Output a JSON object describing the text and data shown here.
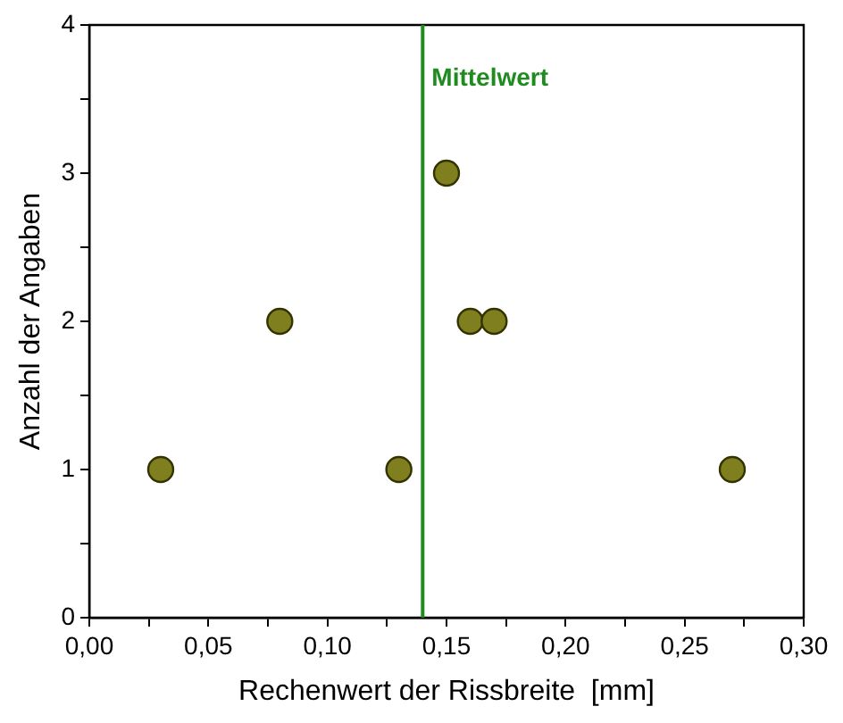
{
  "chart_data": {
    "type": "scatter",
    "xlabel": "Rechenwert der Rissbreite  [mm]",
    "ylabel": "Anzahl der Angaben",
    "series": [
      {
        "color": "#7f7f1f",
        "x": [
          0.03,
          0.08,
          0.13,
          0.15,
          0.16,
          0.17,
          0.27
        ],
        "values": [
          1,
          2,
          1,
          3,
          2,
          2,
          1
        ]
      }
    ],
    "xlim": [
      0,
      0.3
    ],
    "xticks": [
      {
        "value": 0,
        "label": "0,00"
      },
      {
        "value": 0.025,
        "label": null
      },
      {
        "value": 0.05,
        "label": "0,05"
      },
      {
        "value": 0.075,
        "label": null
      },
      {
        "value": 0.1,
        "label": "0,10"
      },
      {
        "value": 0.125,
        "label": null
      },
      {
        "value": 0.15,
        "label": "0,15"
      },
      {
        "value": 0.175,
        "label": null
      },
      {
        "value": 0.2,
        "label": "0,20"
      },
      {
        "value": 0.225,
        "label": null
      },
      {
        "value": 0.25,
        "label": "0,25"
      },
      {
        "value": 0.275,
        "label": null
      },
      {
        "value": 0.3,
        "label": "0,30"
      }
    ],
    "ylim": [
      0,
      4
    ],
    "yticks": [
      0,
      {
        "value": 0.5,
        "label": null
      },
      1,
      {
        "value": 1.5,
        "label": null
      },
      2,
      {
        "value": 2.5,
        "label": null
      },
      3,
      {
        "value": 3.5,
        "label": null
      },
      4
    ],
    "ref_lines": [
      {
        "axis": "x",
        "value": 0.14,
        "label": "Mittelwert",
        "color": "#1f8c1f"
      }
    ],
    "marker": "circle",
    "grid": false,
    "legend": false
  }
}
